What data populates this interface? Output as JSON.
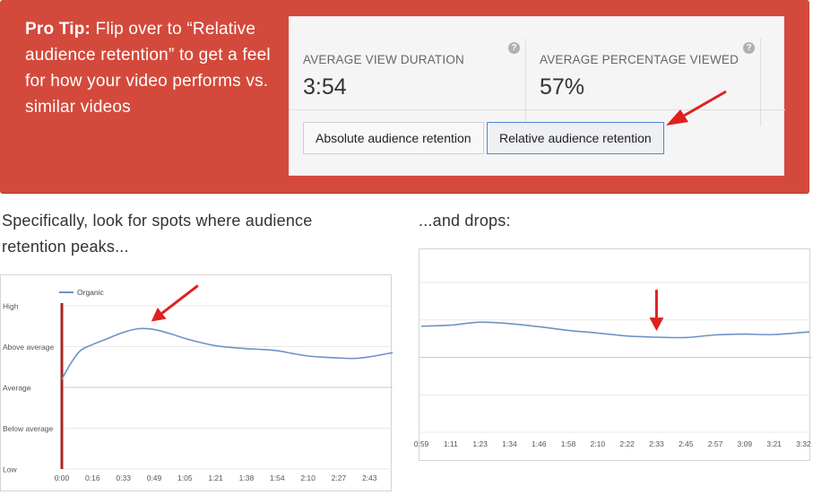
{
  "banner": {
    "tip_bold": "Pro Tip:",
    "tip_text": " Flip over to “Relative audience retention” to get a feel for how your video performs vs. similar videos",
    "bg_color": "#d34a3c"
  },
  "panel": {
    "metrics": [
      {
        "label": "AVERAGE VIEW DURATION",
        "value": "3:54",
        "help": "?"
      },
      {
        "label": "AVERAGE PERCENTAGE VIEWED",
        "value": "57%",
        "help": "?"
      }
    ],
    "buttons": {
      "absolute": "Absolute audience retention",
      "relative": "Relative audience retention",
      "active": "relative"
    }
  },
  "captions": {
    "left": "Specifically, look for spots where audience retention peaks...",
    "right": "...and drops:"
  },
  "chart_data": [
    {
      "type": "line",
      "title": "",
      "legend": {
        "placement": "top-left",
        "entries": [
          "Organic"
        ]
      },
      "y_categories": [
        "Low",
        "Below average",
        "Average",
        "Above average",
        "High"
      ],
      "ylim": [
        0,
        4
      ],
      "x_ticks": [
        "0:00",
        "0:16",
        "0:33",
        "0:49",
        "1:05",
        "1:21",
        "1:38",
        "1:54",
        "2:10",
        "2:27",
        "2:43"
      ],
      "x_range": [
        0,
        10.75
      ],
      "grid": true,
      "series": [
        {
          "name": "Organic",
          "color": "#6d93c4",
          "points": [
            [
              0,
              2.2
            ],
            [
              0.3,
              2.6
            ],
            [
              0.6,
              2.9
            ],
            [
              1,
              3.05
            ],
            [
              1.5,
              3.2
            ],
            [
              2,
              3.35
            ],
            [
              2.5,
              3.44
            ],
            [
              3,
              3.42
            ],
            [
              3.5,
              3.32
            ],
            [
              4,
              3.2
            ],
            [
              4.5,
              3.1
            ],
            [
              5,
              3.02
            ],
            [
              5.5,
              2.98
            ],
            [
              6,
              2.95
            ],
            [
              6.5,
              2.93
            ],
            [
              7,
              2.9
            ],
            [
              7.5,
              2.83
            ],
            [
              8,
              2.77
            ],
            [
              8.5,
              2.74
            ],
            [
              9,
              2.72
            ],
            [
              9.5,
              2.71
            ],
            [
              10,
              2.75
            ],
            [
              10.75,
              2.85
            ]
          ]
        }
      ],
      "marker": {
        "x": 0,
        "color": "#a82626"
      },
      "annotation": {
        "type": "arrow",
        "color": "#e02020",
        "target": [
          2.5,
          3.44
        ]
      }
    },
    {
      "type": "line",
      "title": "",
      "y_categories": [],
      "ylim": [
        0,
        4
      ],
      "x_ticks": [
        "0:59",
        "1:11",
        "1:23",
        "1:34",
        "1:46",
        "1:58",
        "2:10",
        "2:22",
        "2:33",
        "2:45",
        "2:57",
        "3:09",
        "3:21",
        "3:32"
      ],
      "x_range": [
        0,
        13.2
      ],
      "grid": true,
      "series": [
        {
          "name": "",
          "color": "#6d93c4",
          "points": [
            [
              0,
              2.83
            ],
            [
              1,
              2.86
            ],
            [
              2,
              2.94
            ],
            [
              3,
              2.9
            ],
            [
              4,
              2.82
            ],
            [
              5,
              2.72
            ],
            [
              6,
              2.65
            ],
            [
              7,
              2.57
            ],
            [
              8,
              2.54
            ],
            [
              9,
              2.53
            ],
            [
              10,
              2.6
            ],
            [
              11,
              2.62
            ],
            [
              12,
              2.61
            ],
            [
              13.2,
              2.68
            ]
          ]
        }
      ],
      "annotation": {
        "type": "arrow",
        "color": "#e02020",
        "target": [
          8,
          2.56
        ]
      }
    }
  ]
}
